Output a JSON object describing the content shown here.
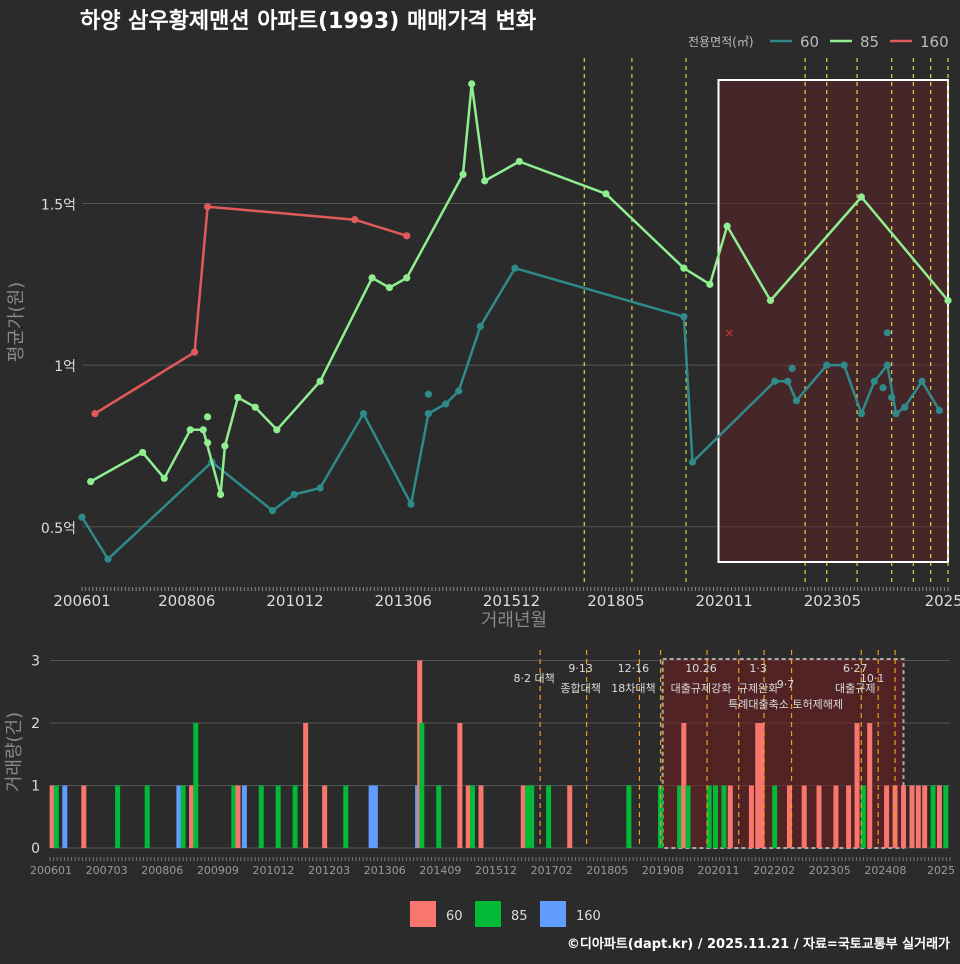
{
  "chart_data": [
    {
      "type": "line",
      "title": "하양 삼우황제맨션 아파트(1993) 매매가격 변화",
      "xlabel": "거래년월",
      "ylabel": "평균가(원)",
      "x_tick_labels": [
        "200601",
        "200806",
        "201012",
        "201306",
        "201512",
        "201805",
        "202011",
        "202305",
        "2025"
      ],
      "y_tick_labels": [
        "0.5억",
        "1억",
        "1.5억"
      ],
      "y_tick_values": [
        0.5,
        1.0,
        1.5
      ],
      "ylim_eok": [
        0.32,
        1.95
      ],
      "legend_title": "전용면적(㎡)",
      "series": [
        {
          "name": "60",
          "color": "#2f8a8a",
          "points": [
            [
              2006.0,
              0.53
            ],
            [
              2006.6,
              0.4
            ],
            [
              2009.0,
              0.7
            ],
            [
              2010.4,
              0.55
            ],
            [
              2010.9,
              0.6
            ],
            [
              2011.5,
              0.62
            ],
            [
              2012.5,
              0.85
            ],
            [
              2013.6,
              0.57
            ],
            [
              2014.0,
              0.85
            ],
            [
              2014.4,
              0.88
            ],
            [
              2014.7,
              0.92
            ],
            [
              2015.2,
              1.12
            ],
            [
              2016.0,
              1.3
            ],
            [
              2019.9,
              1.15
            ],
            [
              2020.1,
              0.7
            ],
            [
              2022.0,
              0.95
            ],
            [
              2022.3,
              0.95
            ],
            [
              2022.5,
              0.89
            ],
            [
              2023.2,
              1.0
            ],
            [
              2023.6,
              1.0
            ],
            [
              2024.0,
              0.85
            ],
            [
              2024.3,
              0.95
            ],
            [
              2024.6,
              1.0
            ],
            [
              2024.8,
              0.85
            ],
            [
              2025.0,
              0.87
            ],
            [
              2025.4,
              0.95
            ],
            [
              2025.8,
              0.86
            ]
          ],
          "extra_points": [
            [
              2014.0,
              0.91
            ],
            [
              2022.4,
              0.99
            ],
            [
              2024.6,
              1.1
            ],
            [
              2024.7,
              0.9
            ],
            [
              2024.5,
              0.93
            ]
          ]
        },
        {
          "name": "85",
          "color": "#90ee90",
          "points": [
            [
              2006.2,
              0.64
            ],
            [
              2007.4,
              0.73
            ],
            [
              2007.9,
              0.65
            ],
            [
              2008.5,
              0.8
            ],
            [
              2008.8,
              0.8
            ],
            [
              2009.2,
              0.6
            ],
            [
              2009.3,
              0.75
            ],
            [
              2009.6,
              0.9
            ],
            [
              2010.0,
              0.87
            ],
            [
              2010.5,
              0.8
            ],
            [
              2011.5,
              0.95
            ],
            [
              2012.7,
              1.27
            ],
            [
              2013.1,
              1.24
            ],
            [
              2013.5,
              1.27
            ],
            [
              2014.8,
              1.59
            ],
            [
              2015.0,
              1.87
            ],
            [
              2015.3,
              1.57
            ],
            [
              2016.1,
              1.63
            ],
            [
              2018.1,
              1.53
            ],
            [
              2019.9,
              1.3
            ],
            [
              2020.5,
              1.25
            ],
            [
              2020.9,
              1.43
            ],
            [
              2021.9,
              1.2
            ],
            [
              2024.0,
              1.52
            ],
            [
              2026.0,
              1.2
            ]
          ],
          "extra_points": [
            [
              2008.9,
              0.84
            ],
            [
              2008.9,
              0.76
            ]
          ]
        },
        {
          "name": "160",
          "color": "#e05a5a",
          "points": [
            [
              2006.3,
              0.85
            ],
            [
              2008.6,
              1.04
            ],
            [
              2008.9,
              1.49
            ],
            [
              2012.3,
              1.45
            ],
            [
              2013.5,
              1.4
            ]
          ],
          "extra_points": []
        }
      ],
      "marker_x_label": "×",
      "highlight_box_years": [
        2020.7,
        2026.0
      ],
      "policy_line_years": [
        2017.6,
        2018.7,
        2019.95,
        2022.7,
        2023.2,
        2023.9,
        2024.7,
        2025.2,
        2025.6,
        2026.0
      ]
    },
    {
      "type": "bar",
      "xlabel": "",
      "ylabel": "거래량(건)",
      "y_tick_labels": [
        "0",
        "1",
        "2",
        "3"
      ],
      "ylim": [
        0,
        3.2
      ],
      "x_tick_labels": [
        "200601",
        "200703",
        "200806",
        "200909",
        "201012",
        "201203",
        "201306",
        "201409",
        "201512",
        "201702",
        "201805",
        "201908",
        "202011",
        "202202",
        "202305",
        "202408",
        "2025"
      ],
      "series_colors": {
        "60": "#f8766d",
        "85": "#00ba38",
        "160": "#619cff"
      },
      "bars": [
        {
          "x": 2006.05,
          "g": "60",
          "v": 1
        },
        {
          "x": 2006.15,
          "g": "85",
          "v": 1
        },
        {
          "x": 2006.35,
          "g": "160",
          "v": 1
        },
        {
          "x": 2006.8,
          "g": "60",
          "v": 1
        },
        {
          "x": 2007.6,
          "g": "85",
          "v": 1
        },
        {
          "x": 2008.3,
          "g": "85",
          "v": 1
        },
        {
          "x": 2009.05,
          "g": "160",
          "v": 1
        },
        {
          "x": 2009.15,
          "g": "85",
          "v": 1
        },
        {
          "x": 2009.35,
          "g": "60",
          "v": 1
        },
        {
          "x": 2009.45,
          "g": "85",
          "v": 2
        },
        {
          "x": 2010.35,
          "g": "85",
          "v": 1
        },
        {
          "x": 2010.45,
          "g": "60",
          "v": 1
        },
        {
          "x": 2010.6,
          "g": "160",
          "v": 1
        },
        {
          "x": 2011.0,
          "g": "85",
          "v": 1
        },
        {
          "x": 2011.4,
          "g": "85",
          "v": 1
        },
        {
          "x": 2011.8,
          "g": "85",
          "v": 1
        },
        {
          "x": 2012.05,
          "g": "60",
          "v": 2
        },
        {
          "x": 2012.5,
          "g": "60",
          "v": 1
        },
        {
          "x": 2013.0,
          "g": "85",
          "v": 1
        },
        {
          "x": 2013.6,
          "g": "160",
          "v": 1
        },
        {
          "x": 2013.7,
          "g": "160",
          "v": 1
        },
        {
          "x": 2014.7,
          "g": "160",
          "v": 1
        },
        {
          "x": 2014.75,
          "g": "60",
          "v": 3
        },
        {
          "x": 2014.8,
          "g": "85",
          "v": 2
        },
        {
          "x": 2015.2,
          "g": "85",
          "v": 1
        },
        {
          "x": 2015.7,
          "g": "60",
          "v": 2
        },
        {
          "x": 2015.9,
          "g": "60",
          "v": 1
        },
        {
          "x": 2016.0,
          "g": "85",
          "v": 1
        },
        {
          "x": 2016.2,
          "g": "60",
          "v": 1
        },
        {
          "x": 2017.2,
          "g": "60",
          "v": 1
        },
        {
          "x": 2017.3,
          "g": "85",
          "v": 1
        },
        {
          "x": 2017.4,
          "g": "85",
          "v": 1
        },
        {
          "x": 2017.8,
          "g": "85",
          "v": 1
        },
        {
          "x": 2018.3,
          "g": "60",
          "v": 1
        },
        {
          "x": 2019.7,
          "g": "85",
          "v": 1
        },
        {
          "x": 2020.45,
          "g": "85",
          "v": 1
        },
        {
          "x": 2020.9,
          "g": "85",
          "v": 1
        },
        {
          "x": 2021.0,
          "g": "60",
          "v": 2
        },
        {
          "x": 2021.1,
          "g": "85",
          "v": 1
        },
        {
          "x": 2021.6,
          "g": "85",
          "v": 1
        },
        {
          "x": 2021.75,
          "g": "85",
          "v": 1
        },
        {
          "x": 2021.95,
          "g": "85",
          "v": 1
        },
        {
          "x": 2022.1,
          "g": "60",
          "v": 1
        },
        {
          "x": 2022.6,
          "g": "60",
          "v": 1
        },
        {
          "x": 2022.75,
          "g": "60",
          "v": 2
        },
        {
          "x": 2022.85,
          "g": "60",
          "v": 2
        },
        {
          "x": 2023.15,
          "g": "85",
          "v": 1
        },
        {
          "x": 2023.5,
          "g": "60",
          "v": 1
        },
        {
          "x": 2023.85,
          "g": "60",
          "v": 1
        },
        {
          "x": 2024.2,
          "g": "60",
          "v": 1
        },
        {
          "x": 2024.6,
          "g": "60",
          "v": 1
        },
        {
          "x": 2024.9,
          "g": "60",
          "v": 1
        },
        {
          "x": 2025.1,
          "g": "60",
          "v": 2
        },
        {
          "x": 2025.25,
          "g": "85",
          "v": 1
        },
        {
          "x": 2025.4,
          "g": "60",
          "v": 2
        },
        {
          "x": 2025.8,
          "g": "60",
          "v": 1
        },
        {
          "x": 2026.0,
          "g": "60",
          "v": 1
        },
        {
          "x": 2026.2,
          "g": "60",
          "v": 1
        },
        {
          "x": 2026.4,
          "g": "60",
          "v": 1
        },
        {
          "x": 2026.55,
          "g": "60",
          "v": 1
        },
        {
          "x": 2026.7,
          "g": "60",
          "v": 1
        },
        {
          "x": 2026.9,
          "g": "85",
          "v": 1
        },
        {
          "x": 2027.05,
          "g": "60",
          "v": 1
        },
        {
          "x": 2027.2,
          "g": "85",
          "v": 1
        }
      ],
      "policy_lines": [
        {
          "year": 2017.6,
          "label": "8·2 대책",
          "row": 0
        },
        {
          "year": 2018.7,
          "label": "9·13\n종합대책",
          "row": 1
        },
        {
          "year": 2019.95,
          "label": "12·16\n18차대책",
          "row": 1
        },
        {
          "year": 2020.45,
          "label": "",
          "row": 0
        },
        {
          "year": 2021.55,
          "label": "10.26\n대출규제강화",
          "row": 1
        },
        {
          "year": 2022.3,
          "label": "",
          "row": 0
        },
        {
          "year": 2022.9,
          "label": "1·3\n규제완화",
          "row": 1
        },
        {
          "year": 2023.55,
          "label": "9·7\n특례대출축소 토허제해제",
          "row": 2
        },
        {
          "year": 2025.2,
          "label": "6·27\n대출규제",
          "row": 1
        },
        {
          "year": 2025.6,
          "label": "10·1",
          "row": 0
        },
        {
          "year": 2026.0,
          "label": "",
          "row": 0
        }
      ],
      "highlight_box_years": [
        2020.5,
        2026.2
      ],
      "legend": [
        "60",
        "85",
        "160"
      ]
    }
  ],
  "footer": "©디아파트(dapt.kr) / 2025.11.21 / 자료=국토교통부 실거래가"
}
